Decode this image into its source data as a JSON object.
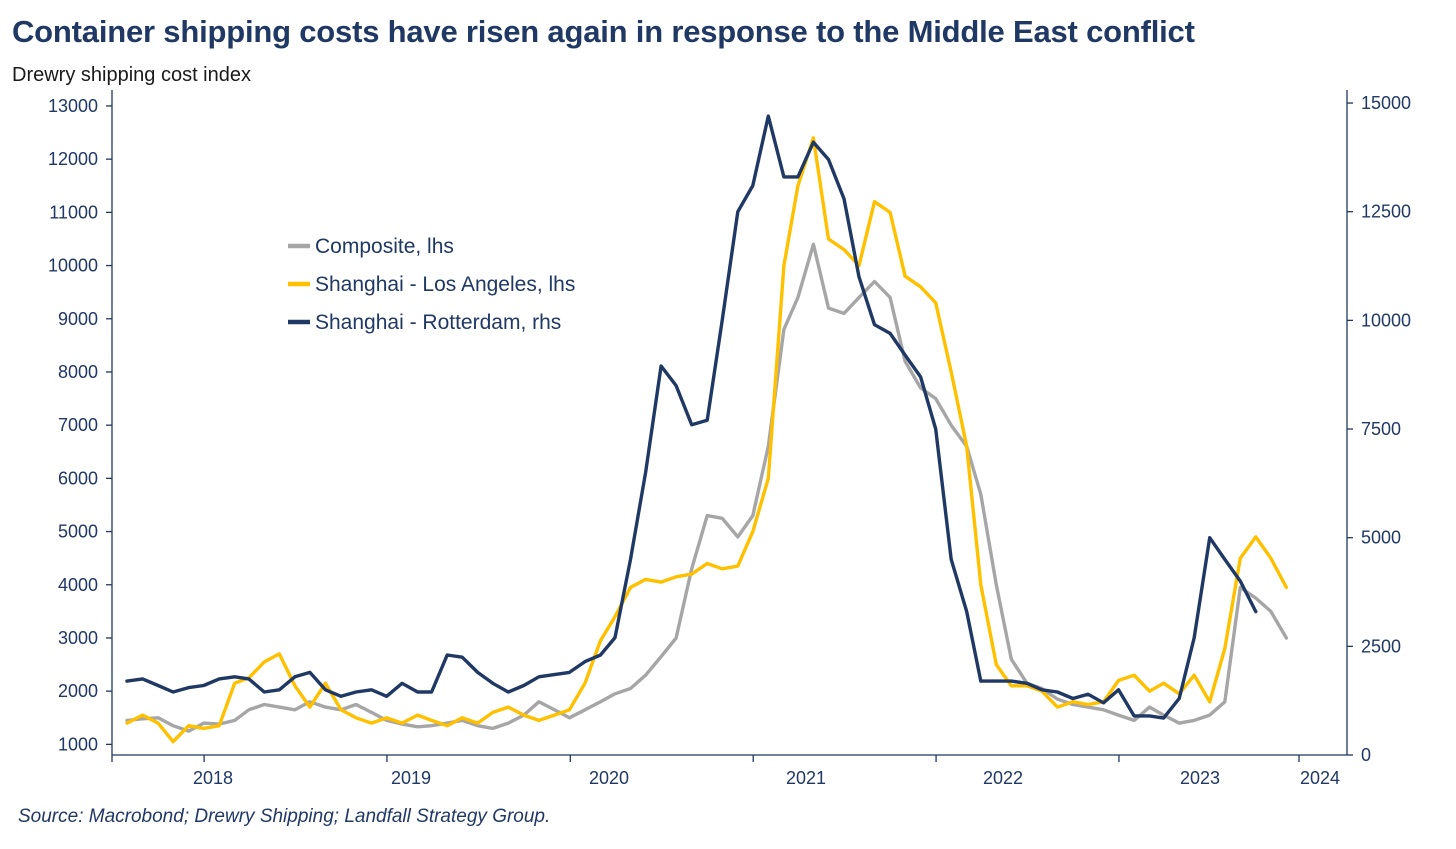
{
  "title": "Container shipping costs have risen again in response to the Middle East conflict",
  "subtitle": "Drewry shipping cost index",
  "source": "Source: Macrobond; Drewry Shipping; Landfall Strategy Group.",
  "chart_data": {
    "type": "line",
    "grid": false,
    "legend_position": "upper-left",
    "x_ticks": [
      "2018",
      "2019",
      "2020",
      "2021",
      "2022",
      "2023",
      "2024"
    ],
    "y_left": {
      "lim": [
        800,
        13300
      ],
      "ticks": [
        1000,
        2000,
        3000,
        4000,
        5000,
        6000,
        7000,
        8000,
        9000,
        10000,
        11000,
        12000,
        13000
      ]
    },
    "y_right": {
      "lim": [
        0,
        15300
      ],
      "ticks": [
        0,
        2500,
        5000,
        7500,
        10000,
        12500,
        15000
      ]
    },
    "series": [
      {
        "name": "Composite, lhs",
        "axis": "left",
        "color": "#a6a6a6",
        "points": [
          [
            "2017-07-01",
            1450
          ],
          [
            "2017-08-01",
            1480
          ],
          [
            "2017-09-01",
            1500
          ],
          [
            "2017-10-01",
            1350
          ],
          [
            "2017-11-01",
            1250
          ],
          [
            "2017-12-01",
            1400
          ],
          [
            "2018-01-01",
            1380
          ],
          [
            "2018-02-01",
            1450
          ],
          [
            "2018-03-01",
            1650
          ],
          [
            "2018-04-01",
            1750
          ],
          [
            "2018-05-01",
            1700
          ],
          [
            "2018-06-01",
            1650
          ],
          [
            "2018-07-01",
            1800
          ],
          [
            "2018-08-01",
            1700
          ],
          [
            "2018-09-01",
            1650
          ],
          [
            "2018-10-01",
            1750
          ],
          [
            "2018-11-01",
            1600
          ],
          [
            "2018-12-01",
            1450
          ],
          [
            "2019-01-01",
            1380
          ],
          [
            "2019-02-01",
            1330
          ],
          [
            "2019-03-01",
            1350
          ],
          [
            "2019-04-01",
            1400
          ],
          [
            "2019-05-01",
            1450
          ],
          [
            "2019-06-01",
            1350
          ],
          [
            "2019-07-01",
            1300
          ],
          [
            "2019-08-01",
            1400
          ],
          [
            "2019-09-01",
            1550
          ],
          [
            "2019-10-01",
            1800
          ],
          [
            "2019-11-01",
            1650
          ],
          [
            "2019-12-01",
            1500
          ],
          [
            "2020-01-01",
            1650
          ],
          [
            "2020-02-01",
            1800
          ],
          [
            "2020-03-01",
            1950
          ],
          [
            "2020-04-01",
            2050
          ],
          [
            "2020-05-01",
            2300
          ],
          [
            "2020-06-01",
            2650
          ],
          [
            "2020-07-01",
            3000
          ],
          [
            "2020-08-01",
            4300
          ],
          [
            "2020-09-01",
            5300
          ],
          [
            "2020-10-01",
            5250
          ],
          [
            "2020-11-01",
            4900
          ],
          [
            "2020-12-01",
            5300
          ],
          [
            "2021-01-01",
            6600
          ],
          [
            "2021-02-01",
            8800
          ],
          [
            "2021-03-01",
            9400
          ],
          [
            "2021-04-01",
            10400
          ],
          [
            "2021-05-01",
            9200
          ],
          [
            "2021-06-01",
            9100
          ],
          [
            "2021-07-01",
            9400
          ],
          [
            "2021-08-01",
            9700
          ],
          [
            "2021-09-01",
            9400
          ],
          [
            "2021-10-01",
            8200
          ],
          [
            "2021-11-01",
            7700
          ],
          [
            "2021-12-01",
            7500
          ],
          [
            "2022-01-01",
            7000
          ],
          [
            "2022-02-01",
            6600
          ],
          [
            "2022-03-01",
            5700
          ],
          [
            "2022-04-01",
            4000
          ],
          [
            "2022-05-01",
            2600
          ],
          [
            "2022-06-01",
            2150
          ],
          [
            "2022-07-01",
            2050
          ],
          [
            "2022-08-01",
            1850
          ],
          [
            "2022-09-01",
            1750
          ],
          [
            "2022-10-01",
            1700
          ],
          [
            "2022-11-01",
            1650
          ],
          [
            "2022-12-01",
            1550
          ],
          [
            "2023-01-01",
            1450
          ],
          [
            "2023-02-01",
            1700
          ],
          [
            "2023-03-01",
            1550
          ],
          [
            "2023-04-01",
            1400
          ],
          [
            "2023-05-01",
            1450
          ],
          [
            "2023-06-01",
            1550
          ],
          [
            "2023-07-01",
            1800
          ],
          [
            "2023-08-01",
            3950
          ],
          [
            "2023-09-01",
            3750
          ],
          [
            "2023-10-01",
            3500
          ],
          [
            "2023-11-01",
            3000
          ]
        ]
      },
      {
        "name": "Shanghai - Los Angeles, lhs",
        "axis": "left",
        "color": "#ffc000",
        "points": [
          [
            "2017-07-01",
            1400
          ],
          [
            "2017-08-01",
            1550
          ],
          [
            "2017-09-01",
            1400
          ],
          [
            "2017-10-01",
            1050
          ],
          [
            "2017-11-01",
            1350
          ],
          [
            "2017-12-01",
            1300
          ],
          [
            "2018-01-01",
            1350
          ],
          [
            "2018-02-01",
            2150
          ],
          [
            "2018-03-01",
            2250
          ],
          [
            "2018-04-01",
            2550
          ],
          [
            "2018-05-01",
            2700
          ],
          [
            "2018-06-01",
            2100
          ],
          [
            "2018-07-01",
            1700
          ],
          [
            "2018-08-01",
            2150
          ],
          [
            "2018-09-01",
            1650
          ],
          [
            "2018-10-01",
            1500
          ],
          [
            "2018-11-01",
            1400
          ],
          [
            "2018-12-01",
            1500
          ],
          [
            "2019-01-01",
            1400
          ],
          [
            "2019-02-01",
            1550
          ],
          [
            "2019-03-01",
            1450
          ],
          [
            "2019-04-01",
            1350
          ],
          [
            "2019-05-01",
            1500
          ],
          [
            "2019-06-01",
            1400
          ],
          [
            "2019-07-01",
            1600
          ],
          [
            "2019-08-01",
            1700
          ],
          [
            "2019-09-01",
            1550
          ],
          [
            "2019-10-01",
            1450
          ],
          [
            "2019-11-01",
            1550
          ],
          [
            "2019-12-01",
            1650
          ],
          [
            "2020-01-01",
            2150
          ],
          [
            "2020-02-01",
            2950
          ],
          [
            "2020-03-01",
            3400
          ],
          [
            "2020-04-01",
            3950
          ],
          [
            "2020-05-01",
            4100
          ],
          [
            "2020-06-01",
            4050
          ],
          [
            "2020-07-01",
            4150
          ],
          [
            "2020-08-01",
            4200
          ],
          [
            "2020-09-01",
            4400
          ],
          [
            "2020-10-01",
            4300
          ],
          [
            "2020-11-01",
            4350
          ],
          [
            "2020-12-01",
            5000
          ],
          [
            "2021-01-01",
            6000
          ],
          [
            "2021-02-01",
            10000
          ],
          [
            "2021-03-01",
            11500
          ],
          [
            "2021-04-01",
            12400
          ],
          [
            "2021-05-01",
            10500
          ],
          [
            "2021-06-01",
            10300
          ],
          [
            "2021-07-01",
            10000
          ],
          [
            "2021-08-01",
            11200
          ],
          [
            "2021-09-01",
            11000
          ],
          [
            "2021-10-01",
            9800
          ],
          [
            "2021-11-01",
            9600
          ],
          [
            "2021-12-01",
            9300
          ],
          [
            "2022-01-01",
            8000
          ],
          [
            "2022-02-01",
            6600
          ],
          [
            "2022-03-01",
            4000
          ],
          [
            "2022-04-01",
            2500
          ],
          [
            "2022-05-01",
            2100
          ],
          [
            "2022-06-01",
            2100
          ],
          [
            "2022-07-01",
            2000
          ],
          [
            "2022-08-01",
            1700
          ],
          [
            "2022-09-01",
            1800
          ],
          [
            "2022-10-01",
            1750
          ],
          [
            "2022-11-01",
            1800
          ],
          [
            "2022-12-01",
            2200
          ],
          [
            "2023-01-01",
            2300
          ],
          [
            "2023-02-01",
            2000
          ],
          [
            "2023-03-01",
            2150
          ],
          [
            "2023-04-01",
            1950
          ],
          [
            "2023-05-01",
            2300
          ],
          [
            "2023-06-01",
            1800
          ],
          [
            "2023-07-01",
            2800
          ],
          [
            "2023-08-01",
            4500
          ],
          [
            "2023-09-01",
            4900
          ],
          [
            "2023-10-01",
            4500
          ],
          [
            "2023-11-01",
            3950
          ]
        ]
      },
      {
        "name": "Shanghai - Rotterdam, rhs",
        "axis": "right",
        "color": "#1f3864",
        "points": [
          [
            "2017-07-01",
            1700
          ],
          [
            "2017-08-01",
            1750
          ],
          [
            "2017-09-01",
            1600
          ],
          [
            "2017-10-01",
            1450
          ],
          [
            "2017-11-01",
            1550
          ],
          [
            "2017-12-01",
            1600
          ],
          [
            "2018-01-01",
            1750
          ],
          [
            "2018-02-01",
            1800
          ],
          [
            "2018-03-01",
            1750
          ],
          [
            "2018-04-01",
            1450
          ],
          [
            "2018-05-01",
            1500
          ],
          [
            "2018-06-01",
            1800
          ],
          [
            "2018-07-01",
            1900
          ],
          [
            "2018-08-01",
            1500
          ],
          [
            "2018-09-01",
            1350
          ],
          [
            "2018-10-01",
            1450
          ],
          [
            "2018-11-01",
            1500
          ],
          [
            "2018-12-01",
            1350
          ],
          [
            "2019-01-01",
            1650
          ],
          [
            "2019-02-01",
            1450
          ],
          [
            "2019-03-01",
            1450
          ],
          [
            "2019-04-01",
            2300
          ],
          [
            "2019-05-01",
            2250
          ],
          [
            "2019-06-01",
            1900
          ],
          [
            "2019-07-01",
            1650
          ],
          [
            "2019-08-01",
            1450
          ],
          [
            "2019-09-01",
            1600
          ],
          [
            "2019-10-01",
            1800
          ],
          [
            "2019-11-01",
            1850
          ],
          [
            "2019-12-01",
            1900
          ],
          [
            "2020-01-01",
            2150
          ],
          [
            "2020-02-01",
            2300
          ],
          [
            "2020-03-01",
            2700
          ],
          [
            "2020-04-01",
            4500
          ],
          [
            "2020-05-01",
            6500
          ],
          [
            "2020-06-01",
            8950
          ],
          [
            "2020-07-01",
            8500
          ],
          [
            "2020-08-01",
            7600
          ],
          [
            "2020-09-01",
            7700
          ],
          [
            "2020-10-01",
            10000
          ],
          [
            "2020-11-01",
            12500
          ],
          [
            "2020-12-01",
            13100
          ],
          [
            "2021-01-01",
            14700
          ],
          [
            "2021-02-01",
            13300
          ],
          [
            "2021-03-01",
            13300
          ],
          [
            "2021-04-01",
            14100
          ],
          [
            "2021-05-01",
            13700
          ],
          [
            "2021-06-01",
            12800
          ],
          [
            "2021-07-01",
            11000
          ],
          [
            "2021-08-01",
            9900
          ],
          [
            "2021-09-01",
            9700
          ],
          [
            "2021-10-01",
            9200
          ],
          [
            "2021-11-01",
            8700
          ],
          [
            "2021-12-01",
            7500
          ],
          [
            "2022-01-01",
            4500
          ],
          [
            "2022-02-01",
            3300
          ],
          [
            "2022-03-01",
            1700
          ],
          [
            "2022-04-01",
            1700
          ],
          [
            "2022-05-01",
            1700
          ],
          [
            "2022-06-01",
            1650
          ],
          [
            "2022-07-01",
            1500
          ],
          [
            "2022-08-01",
            1450
          ],
          [
            "2022-09-01",
            1300
          ],
          [
            "2022-10-01",
            1400
          ],
          [
            "2022-11-01",
            1200
          ],
          [
            "2022-12-01",
            1500
          ],
          [
            "2023-01-01",
            900
          ],
          [
            "2023-02-01",
            900
          ],
          [
            "2023-03-01",
            850
          ],
          [
            "2023-04-01",
            1300
          ],
          [
            "2023-05-01",
            2700
          ],
          [
            "2023-06-01",
            5000
          ],
          [
            "2023-07-01",
            4500
          ],
          [
            "2023-08-01",
            4000
          ],
          [
            "2023-09-01",
            3300
          ]
        ]
      }
    ]
  }
}
